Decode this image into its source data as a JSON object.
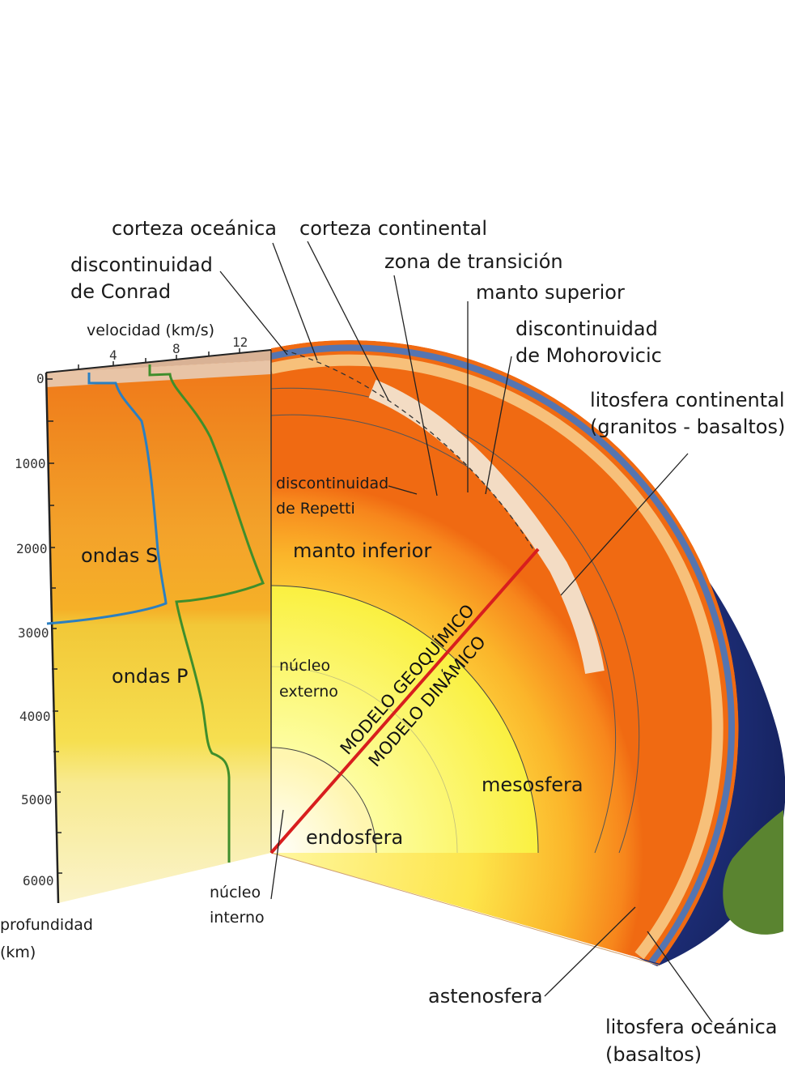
{
  "labels": {
    "corteza_oceanica": "corteza oceánica",
    "corteza_continental": "corteza continental",
    "discontinuidad_conrad_1": "discontinuidad",
    "discontinuidad_conrad_2": "de Conrad",
    "zona_transicion": "zona de transición",
    "manto_superior": "manto superior",
    "discontinuidad_moho_1": "discontinuidad",
    "discontinuidad_moho_2": "de Mohorovicic",
    "litosfera_continental_1": "litosfera continental",
    "litosfera_continental_2": "(granitos - basaltos)",
    "discontinuidad_repetti_1": "discontinuidad",
    "discontinuidad_repetti_2": "de Repetti",
    "manto_inferior": "manto inferior",
    "nucleo_externo_1": "núcleo",
    "nucleo_externo_2": "externo",
    "mesosfera": "mesosfera",
    "endosfera": "endosfera",
    "nucleo_interno_1": "núcleo",
    "nucleo_interno_2": "interno",
    "astenosfera": "astenosfera",
    "litosfera_oceanica_1": "litosfera oceánica",
    "litosfera_oceanica_2": "(basaltos)",
    "ondas_s": "ondas S",
    "ondas_p": "ondas P",
    "modelo_geoquimico": "MODELO GEOQUÍMICO",
    "modelo_dinamico": "MODELO DINÁMICO"
  },
  "velocity_axis": {
    "title": "velocidad (km/s)",
    "ticks": [
      "4",
      "8",
      "12"
    ]
  },
  "depth_axis": {
    "title_1": "profundidad",
    "title_2": "(km)",
    "ticks": [
      "0",
      "1000",
      "2000",
      "3000",
      "4000",
      "5000",
      "6000"
    ]
  },
  "colors": {
    "ocean": "#1e2f7a",
    "land": "#4f7a2c",
    "s_wave": "#2b7fc1",
    "p_wave": "#3f8e2c",
    "model_line": "#d81e1e"
  }
}
